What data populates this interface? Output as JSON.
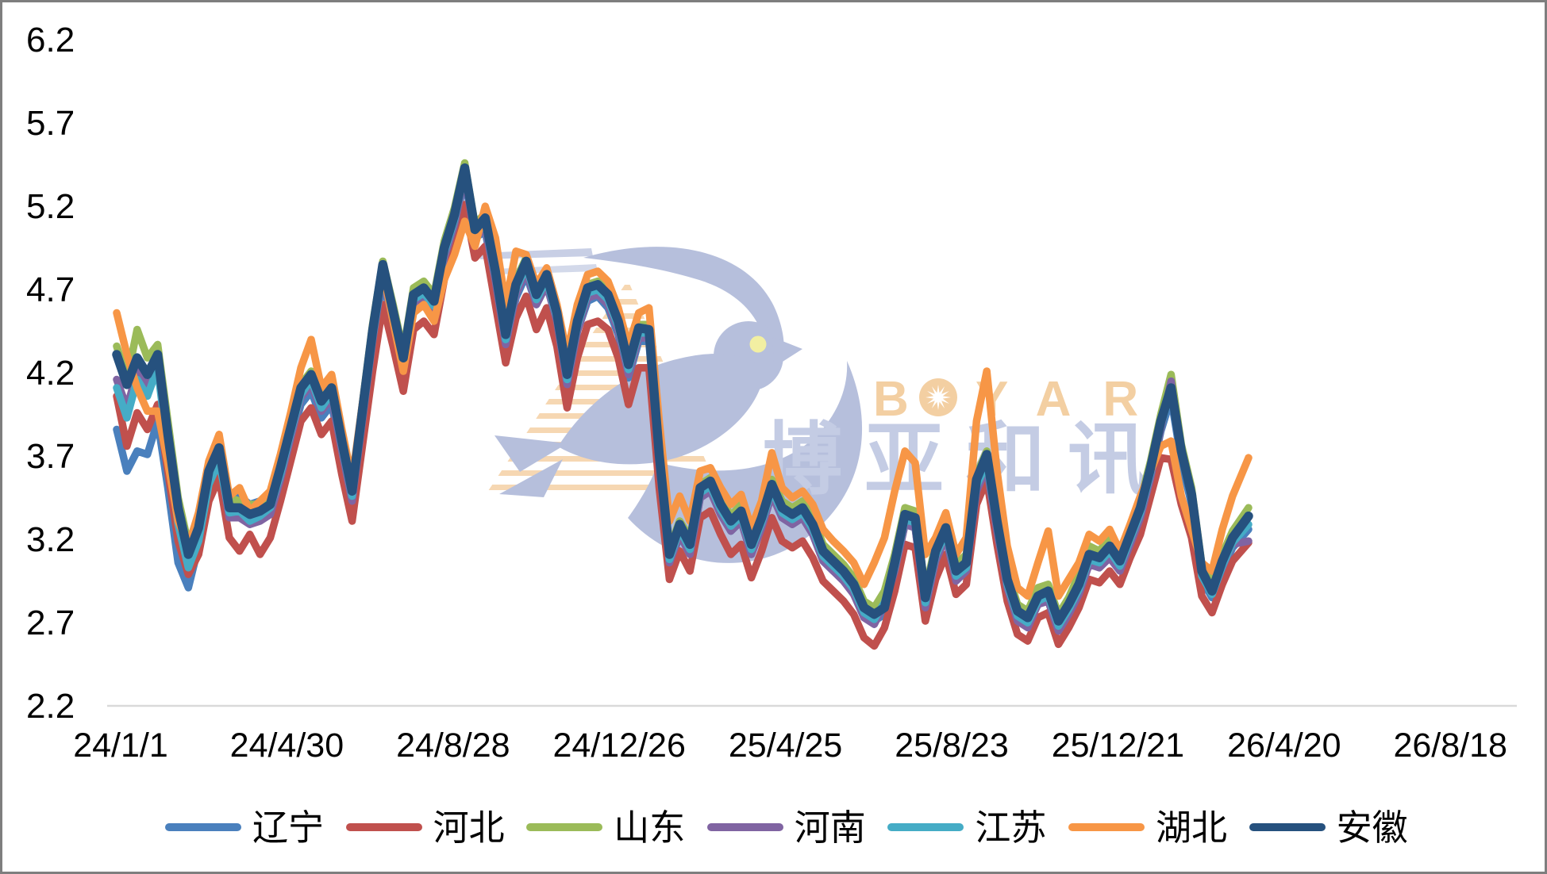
{
  "watermark": {
    "brand_en": "BOYAR",
    "brand_en_parts": {
      "p1": "B",
      "p2": "YAR"
    },
    "brand_cn": "博亚和讯",
    "colors": {
      "dove": "#b6bfdc",
      "text_en": "#f3cfa2",
      "text_cn": "#c4cce4",
      "stripes": "#f6d7b2",
      "eye": "#f2efa2"
    }
  },
  "axes": {
    "y_tick_labels": [
      "6.2",
      "5.7",
      "5.2",
      "4.7",
      "4.2",
      "3.7",
      "3.2",
      "2.7",
      "2.2"
    ],
    "x_tick_labels": [
      "24/1/1",
      "24/4/30",
      "24/8/28",
      "24/12/26",
      "25/4/25",
      "25/8/23",
      "25/12/21",
      "26/4/20",
      "26/8/18"
    ],
    "axis_line_color": "#d9d9d9"
  },
  "chart_data": {
    "type": "line",
    "title": "",
    "xlabel": "",
    "ylabel": "",
    "ylim": [
      2.2,
      6.2
    ],
    "grid": false,
    "legend_position": "bottom",
    "x_unit": "days since 24/1/1, ticks every 120 days",
    "days": [
      0,
      7,
      14,
      21,
      28,
      35,
      42,
      49,
      56,
      63,
      70,
      77,
      84,
      91,
      98,
      105,
      112,
      119,
      126,
      133,
      140,
      147,
      154,
      161,
      168,
      175,
      182,
      189,
      196,
      203,
      210,
      217,
      224,
      231,
      238,
      245,
      252,
      259,
      266,
      273,
      280,
      287,
      294,
      301,
      308,
      315,
      322,
      329,
      336,
      343,
      350,
      357,
      364,
      371,
      378,
      385,
      392,
      399,
      406,
      413,
      420,
      427,
      434,
      441,
      448,
      455,
      462,
      469,
      476,
      483,
      490,
      497,
      504,
      511,
      518,
      525,
      532,
      539,
      546,
      553,
      560,
      567,
      574,
      581,
      588,
      595,
      602,
      609,
      616,
      623,
      630,
      637,
      644,
      651,
      658,
      665,
      672,
      679,
      686,
      693,
      700,
      707,
      714,
      721,
      728,
      735,
      742,
      749,
      756,
      763,
      774
    ],
    "series": [
      {
        "name": "辽宁",
        "color": "#4a80bd",
        "values": [
          3.85,
          3.6,
          3.72,
          3.7,
          3.9,
          3.5,
          3.05,
          2.9,
          3.15,
          3.5,
          3.65,
          3.42,
          3.45,
          3.4,
          3.42,
          3.44,
          3.58,
          3.78,
          4.0,
          4.08,
          3.92,
          4.0,
          3.7,
          3.4,
          3.85,
          4.35,
          4.75,
          4.48,
          4.2,
          4.58,
          4.62,
          4.55,
          4.86,
          5.06,
          5.36,
          5.0,
          5.04,
          4.72,
          4.35,
          4.64,
          4.78,
          4.6,
          4.72,
          4.5,
          4.12,
          4.44,
          4.62,
          4.65,
          4.58,
          4.42,
          4.16,
          4.38,
          4.38,
          3.62,
          3.02,
          3.22,
          3.1,
          3.44,
          3.48,
          3.35,
          3.24,
          3.3,
          3.1,
          3.26,
          3.46,
          3.32,
          3.28,
          3.32,
          3.22,
          3.06,
          3.0,
          2.95,
          2.86,
          2.73,
          2.7,
          2.74,
          3.0,
          3.28,
          3.26,
          2.8,
          3.06,
          3.3,
          2.95,
          3.0,
          3.48,
          3.62,
          3.24,
          2.9,
          2.72,
          2.68,
          2.8,
          2.84,
          2.66,
          2.76,
          2.88,
          3.05,
          3.03,
          3.1,
          3.02,
          3.18,
          3.32,
          3.56,
          3.84,
          4.04,
          3.66,
          3.4,
          2.95,
          2.84,
          3.0,
          3.14,
          3.25
        ]
      },
      {
        "name": "河北",
        "color": "#c0504d",
        "values": [
          4.05,
          3.75,
          3.95,
          3.85,
          4.0,
          3.6,
          3.18,
          2.98,
          3.1,
          3.42,
          3.56,
          3.2,
          3.12,
          3.22,
          3.1,
          3.2,
          3.42,
          3.66,
          3.9,
          3.98,
          3.82,
          3.9,
          3.58,
          3.3,
          3.75,
          4.2,
          4.6,
          4.35,
          4.08,
          4.45,
          4.5,
          4.42,
          4.75,
          4.95,
          5.2,
          4.88,
          4.95,
          4.6,
          4.25,
          4.52,
          4.65,
          4.45,
          4.58,
          4.35,
          3.98,
          4.28,
          4.48,
          4.5,
          4.45,
          4.28,
          4.0,
          4.22,
          4.22,
          3.5,
          2.95,
          3.12,
          3.0,
          3.32,
          3.36,
          3.22,
          3.1,
          3.16,
          2.96,
          3.12,
          3.32,
          3.18,
          3.14,
          3.18,
          3.08,
          2.94,
          2.88,
          2.82,
          2.74,
          2.6,
          2.55,
          2.66,
          2.88,
          3.16,
          3.14,
          2.7,
          2.95,
          3.1,
          2.86,
          2.92,
          3.4,
          3.55,
          3.16,
          2.82,
          2.62,
          2.58,
          2.72,
          2.75,
          2.56,
          2.66,
          2.78,
          2.95,
          2.93,
          3.0,
          2.92,
          3.08,
          3.22,
          3.45,
          3.68,
          3.67,
          3.4,
          3.2,
          2.85,
          2.75,
          2.92,
          3.06,
          3.17
        ]
      },
      {
        "name": "山东",
        "color": "#9bbb59",
        "values": [
          4.35,
          4.15,
          4.45,
          4.28,
          4.36,
          3.9,
          3.44,
          3.16,
          3.32,
          3.65,
          3.78,
          3.44,
          3.42,
          3.4,
          3.4,
          3.46,
          3.66,
          3.9,
          4.12,
          4.2,
          4.05,
          4.14,
          3.82,
          3.52,
          4.0,
          4.48,
          4.86,
          4.6,
          4.32,
          4.7,
          4.74,
          4.66,
          4.98,
          5.18,
          5.45,
          5.08,
          5.15,
          4.84,
          4.46,
          4.75,
          4.88,
          4.7,
          4.8,
          4.58,
          4.22,
          4.54,
          4.72,
          4.74,
          4.68,
          4.52,
          4.28,
          4.48,
          4.48,
          3.74,
          3.14,
          3.3,
          3.2,
          3.52,
          3.56,
          3.44,
          3.33,
          3.4,
          3.2,
          3.35,
          3.55,
          3.42,
          3.38,
          3.42,
          3.32,
          3.16,
          3.1,
          3.04,
          2.96,
          2.82,
          2.78,
          2.88,
          3.1,
          3.38,
          3.36,
          2.88,
          3.16,
          3.3,
          3.04,
          3.1,
          3.58,
          3.72,
          3.34,
          3.0,
          2.8,
          2.76,
          2.9,
          2.92,
          2.74,
          2.84,
          2.98,
          3.15,
          3.12,
          3.2,
          3.1,
          3.26,
          3.42,
          3.66,
          3.94,
          4.18,
          3.76,
          3.5,
          3.04,
          2.92,
          3.1,
          3.24,
          3.38
        ]
      },
      {
        "name": "河南",
        "color": "#8064a2",
        "values": [
          4.15,
          3.98,
          4.2,
          4.1,
          4.28,
          3.76,
          3.32,
          3.05,
          3.2,
          3.54,
          3.68,
          3.32,
          3.32,
          3.28,
          3.3,
          3.34,
          3.55,
          3.8,
          4.04,
          4.12,
          3.96,
          4.04,
          3.72,
          3.42,
          3.9,
          4.38,
          4.78,
          4.5,
          4.22,
          4.6,
          4.64,
          4.56,
          4.88,
          5.08,
          5.38,
          5.0,
          5.06,
          4.74,
          4.36,
          4.66,
          4.8,
          4.6,
          4.72,
          4.5,
          4.12,
          4.44,
          4.64,
          4.66,
          4.6,
          4.44,
          4.18,
          4.4,
          4.4,
          3.64,
          3.05,
          3.22,
          3.1,
          3.44,
          3.48,
          3.34,
          3.24,
          3.3,
          3.1,
          3.26,
          3.46,
          3.32,
          3.28,
          3.32,
          3.22,
          3.06,
          3.0,
          2.94,
          2.86,
          2.72,
          2.68,
          2.8,
          3.0,
          3.28,
          3.26,
          2.78,
          3.06,
          3.2,
          2.94,
          3.0,
          3.48,
          3.62,
          3.24,
          2.9,
          2.7,
          2.66,
          2.8,
          2.82,
          2.64,
          2.74,
          2.86,
          3.04,
          3.02,
          3.08,
          3.0,
          3.16,
          3.32,
          3.56,
          3.86,
          4.14,
          3.7,
          3.44,
          2.98,
          2.86,
          3.02,
          3.16,
          3.18
        ]
      },
      {
        "name": "江苏",
        "color": "#45acc6",
        "values": [
          4.1,
          3.92,
          4.15,
          4.05,
          4.22,
          3.72,
          3.28,
          3.02,
          3.18,
          3.52,
          3.66,
          3.35,
          3.36,
          3.3,
          3.33,
          3.38,
          3.58,
          3.83,
          4.06,
          4.15,
          3.98,
          4.07,
          3.75,
          3.45,
          3.92,
          4.4,
          4.8,
          4.53,
          4.25,
          4.63,
          4.67,
          4.59,
          4.91,
          5.11,
          5.4,
          5.02,
          5.09,
          4.77,
          4.39,
          4.69,
          4.83,
          4.63,
          4.75,
          4.52,
          4.15,
          4.47,
          4.67,
          4.69,
          4.63,
          4.47,
          4.21,
          4.43,
          4.43,
          3.67,
          3.07,
          3.25,
          3.13,
          3.47,
          3.51,
          3.37,
          3.27,
          3.33,
          3.13,
          3.29,
          3.49,
          3.35,
          3.31,
          3.35,
          3.25,
          3.09,
          3.03,
          2.97,
          2.89,
          2.75,
          2.71,
          2.81,
          3.02,
          3.31,
          3.29,
          2.81,
          3.09,
          3.23,
          2.97,
          3.02,
          3.51,
          3.65,
          3.27,
          2.92,
          2.73,
          2.69,
          2.82,
          2.85,
          2.67,
          2.77,
          2.89,
          3.07,
          3.05,
          3.12,
          3.03,
          3.19,
          3.35,
          3.59,
          3.88,
          4.08,
          3.7,
          3.44,
          2.97,
          2.86,
          3.03,
          3.17,
          3.28
        ]
      },
      {
        "name": "湖北",
        "color": "#f79646",
        "values": [
          4.55,
          4.3,
          4.1,
          3.96,
          3.96,
          3.65,
          3.3,
          3.15,
          3.35,
          3.66,
          3.82,
          3.45,
          3.5,
          3.36,
          3.42,
          3.48,
          3.7,
          3.95,
          4.22,
          4.39,
          4.1,
          4.18,
          3.85,
          3.55,
          4.0,
          4.45,
          4.8,
          4.5,
          4.2,
          4.55,
          4.6,
          4.5,
          4.75,
          4.9,
          5.1,
          4.95,
          5.19,
          5.0,
          4.6,
          4.92,
          4.9,
          4.72,
          4.82,
          4.6,
          4.3,
          4.6,
          4.78,
          4.8,
          4.74,
          4.58,
          4.35,
          4.55,
          4.58,
          3.9,
          3.3,
          3.45,
          3.3,
          3.6,
          3.62,
          3.5,
          3.4,
          3.46,
          3.26,
          3.42,
          3.71,
          3.5,
          3.44,
          3.48,
          3.4,
          3.25,
          3.18,
          3.12,
          3.05,
          2.92,
          3.05,
          3.2,
          3.48,
          3.72,
          3.65,
          3.1,
          3.2,
          3.35,
          3.1,
          3.2,
          3.9,
          4.2,
          3.6,
          3.15,
          2.9,
          2.85,
          3.05,
          3.24,
          2.85,
          2.95,
          3.05,
          3.22,
          3.18,
          3.25,
          3.12,
          3.28,
          3.45,
          3.6,
          3.75,
          3.78,
          3.45,
          3.25,
          3.05,
          3.0,
          3.25,
          3.45,
          3.68
        ]
      },
      {
        "name": "安徽",
        "color": "#26517e",
        "values": [
          4.3,
          4.12,
          4.28,
          4.18,
          4.3,
          3.82,
          3.38,
          3.1,
          3.26,
          3.6,
          3.74,
          3.38,
          3.38,
          3.34,
          3.36,
          3.4,
          3.62,
          3.86,
          4.1,
          4.18,
          4.02,
          4.1,
          3.78,
          3.48,
          3.96,
          4.44,
          4.84,
          4.56,
          4.28,
          4.66,
          4.7,
          4.62,
          4.94,
          5.14,
          5.42,
          5.05,
          5.12,
          4.8,
          4.42,
          4.72,
          4.86,
          4.66,
          4.78,
          4.55,
          4.18,
          4.5,
          4.7,
          4.72,
          4.66,
          4.5,
          4.24,
          4.46,
          4.45,
          3.7,
          3.1,
          3.28,
          3.16,
          3.5,
          3.54,
          3.4,
          3.3,
          3.36,
          3.16,
          3.32,
          3.52,
          3.38,
          3.34,
          3.38,
          3.28,
          3.12,
          3.06,
          3.0,
          2.92,
          2.78,
          2.74,
          2.78,
          3.05,
          3.34,
          3.32,
          2.84,
          3.12,
          3.26,
          3.0,
          3.05,
          3.55,
          3.7,
          3.3,
          2.95,
          2.76,
          2.72,
          2.85,
          2.88,
          2.7,
          2.8,
          2.92,
          3.1,
          3.08,
          3.15,
          3.06,
          3.22,
          3.38,
          3.62,
          3.9,
          4.1,
          3.72,
          3.46,
          3.0,
          2.88,
          3.06,
          3.2,
          3.33
        ]
      }
    ]
  }
}
